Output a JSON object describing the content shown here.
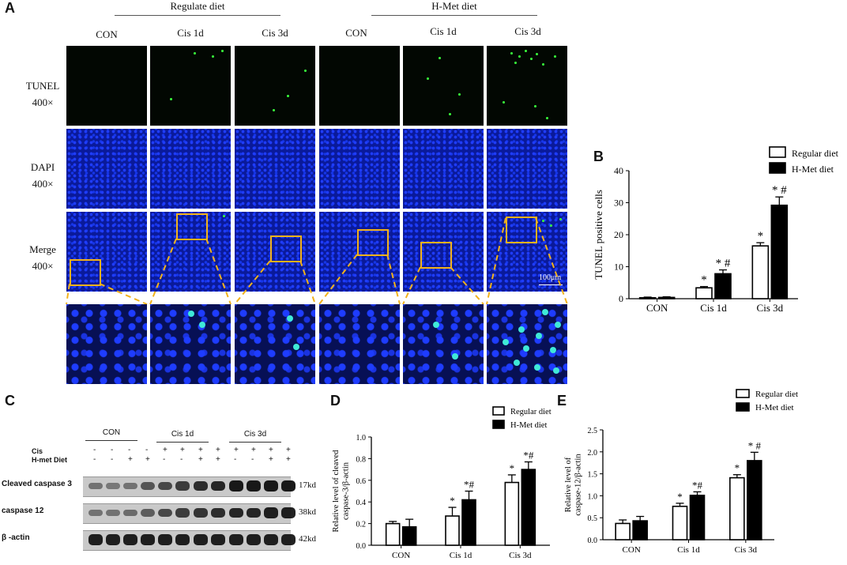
{
  "panel_a": {
    "label": "A",
    "groups": [
      "Regulate diet",
      "H-Met diet"
    ],
    "columns": [
      "CON",
      "Cis 1d",
      "Cis 3d",
      "CON",
      "Cis 1d",
      "Cis 3d"
    ],
    "rows": [
      {
        "line1": "TUNEL",
        "line2": "400×"
      },
      {
        "line1": "DAPI",
        "line2": "400×"
      },
      {
        "line1": "Merge",
        "line2": "400×"
      }
    ],
    "scale_bar": "100μm",
    "colors": {
      "tunel": "#39ff3c",
      "dapi": "#1f3dff",
      "highlight_box": "#f2b21b"
    }
  },
  "panel_c": {
    "label": "C",
    "group_labels": [
      "CON",
      "Cis 1d",
      "Cis 3d"
    ],
    "row_labels": [
      "Cis",
      "H-met Diet"
    ],
    "cis_signs": [
      "-",
      "-",
      "-",
      "-",
      "+",
      "+",
      "+",
      "+",
      "+",
      "+",
      "+",
      "+"
    ],
    "hmet_signs": [
      "-",
      "-",
      "+",
      "+",
      "-",
      "-",
      "+",
      "+",
      "-",
      "-",
      "+",
      "+"
    ],
    "blots": [
      {
        "name": "Cleaved caspase 3",
        "size": "17kd",
        "intensity": [
          0.3,
          0.25,
          0.3,
          0.5,
          0.6,
          0.7,
          0.8,
          0.85,
          0.95,
          0.95,
          0.95,
          0.95
        ]
      },
      {
        "name": "caspase 12",
        "size": "38kd",
        "intensity": [
          0.3,
          0.3,
          0.35,
          0.45,
          0.6,
          0.7,
          0.75,
          0.8,
          0.85,
          0.85,
          0.9,
          0.9
        ]
      },
      {
        "name": "β -actin",
        "size": "42kd",
        "intensity": [
          0.9,
          0.9,
          0.9,
          0.9,
          0.9,
          0.9,
          0.9,
          0.9,
          0.9,
          0.9,
          0.9,
          0.9
        ]
      }
    ]
  },
  "chart_data": [
    {
      "panel": "B",
      "type": "bar",
      "categories": [
        "CON",
        "Cis 1d",
        "Cis 3d"
      ],
      "series": [
        {
          "name": "Regular diet",
          "values": [
            0.3,
            3.4,
            16.5
          ],
          "errors": [
            0.2,
            0.4,
            1.0
          ],
          "marks": [
            "",
            "*",
            "*"
          ]
        },
        {
          "name": "H-Met diet",
          "values": [
            0.4,
            7.8,
            29.2
          ],
          "errors": [
            0.2,
            1.2,
            2.6
          ],
          "marks": [
            "",
            "* #",
            "* #"
          ]
        }
      ],
      "ylabel": "TUNEL positive cells",
      "ylim": [
        0,
        40
      ],
      "yticks": [
        "0",
        "10",
        "20",
        "30",
        "40"
      ],
      "legend": "top-right"
    },
    {
      "panel": "D",
      "type": "bar",
      "categories": [
        "CON",
        "Cis 1d",
        "Cis 3d"
      ],
      "series": [
        {
          "name": "Regular diet",
          "values": [
            0.2,
            0.27,
            0.58
          ],
          "errors": [
            0.02,
            0.08,
            0.07
          ],
          "marks": [
            "",
            "*",
            "*"
          ]
        },
        {
          "name": "H-Met diet",
          "values": [
            0.17,
            0.42,
            0.7
          ],
          "errors": [
            0.07,
            0.08,
            0.07
          ],
          "marks": [
            "",
            "*#",
            "*#"
          ]
        }
      ],
      "ylabel": "Relative level of cleaved caspase-3/β-actin",
      "ylabel_lines": [
        "Relative level of cleaved",
        "caspase-3/β-actin"
      ],
      "ylim": [
        0,
        1.0
      ],
      "yticks": [
        "0.0",
        "0.2",
        "0.4",
        "0.6",
        "0.8",
        "1.0"
      ],
      "legend": "top-right"
    },
    {
      "panel": "E",
      "type": "bar",
      "categories": [
        "CON",
        "Cis 1d",
        "Cis 3d"
      ],
      "series": [
        {
          "name": "Regular diet",
          "values": [
            0.37,
            0.76,
            1.41
          ],
          "errors": [
            0.08,
            0.07,
            0.07
          ],
          "marks": [
            "",
            "*",
            "*"
          ]
        },
        {
          "name": "H-Met diet",
          "values": [
            0.43,
            1.01,
            1.8
          ],
          "errors": [
            0.1,
            0.08,
            0.19
          ],
          "marks": [
            "",
            "*#",
            "* #"
          ]
        }
      ],
      "ylabel": "Relative level of caspase-12/β-actin",
      "ylabel_lines": [
        "Relative level of",
        "caspase-12/β-actin"
      ],
      "ylim": [
        0,
        2.5
      ],
      "yticks": [
        "0.0",
        "0.5",
        "1.0",
        "1.5",
        "2.0",
        "2.5"
      ],
      "legend": "top-right"
    }
  ]
}
